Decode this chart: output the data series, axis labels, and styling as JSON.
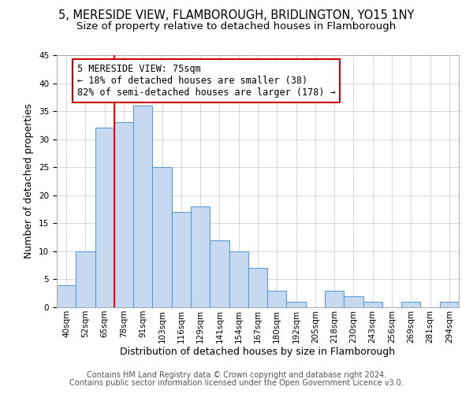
{
  "title1": "5, MERESIDE VIEW, FLAMBOROUGH, BRIDLINGTON, YO15 1NY",
  "title2": "Size of property relative to detached houses in Flamborough",
  "xlabel": "Distribution of detached houses by size in Flamborough",
  "ylabel": "Number of detached properties",
  "bin_labels": [
    "40sqm",
    "52sqm",
    "65sqm",
    "78sqm",
    "91sqm",
    "103sqm",
    "116sqm",
    "129sqm",
    "141sqm",
    "154sqm",
    "167sqm",
    "180sqm",
    "192sqm",
    "205sqm",
    "218sqm",
    "230sqm",
    "243sqm",
    "256sqm",
    "269sqm",
    "281sqm",
    "294sqm"
  ],
  "bar_values": [
    4,
    10,
    32,
    33,
    36,
    25,
    17,
    18,
    12,
    10,
    7,
    3,
    1,
    0,
    3,
    2,
    1,
    0,
    1,
    0,
    1
  ],
  "bar_color": "#c7d9f0",
  "bar_edge_color": "#5b9bd5",
  "vline_color": "red",
  "vline_index": 3,
  "annotation_line1": "5 MERESIDE VIEW: 75sqm",
  "annotation_line2": "← 18% of detached houses are smaller (38)",
  "annotation_line3": "82% of semi-detached houses are larger (178) →",
  "annotation_box_color": "white",
  "annotation_box_edge_color": "#cc0000",
  "ylim": [
    0,
    45
  ],
  "yticks": [
    0,
    5,
    10,
    15,
    20,
    25,
    30,
    35,
    40,
    45
  ],
  "footer1": "Contains HM Land Registry data © Crown copyright and database right 2024.",
  "footer2": "Contains public sector information licensed under the Open Government Licence v3.0.",
  "title1_fontsize": 10.5,
  "title2_fontsize": 9.5,
  "axis_label_fontsize": 9,
  "tick_fontsize": 7.5,
  "annotation_fontsize": 8.5,
  "footer_fontsize": 7
}
